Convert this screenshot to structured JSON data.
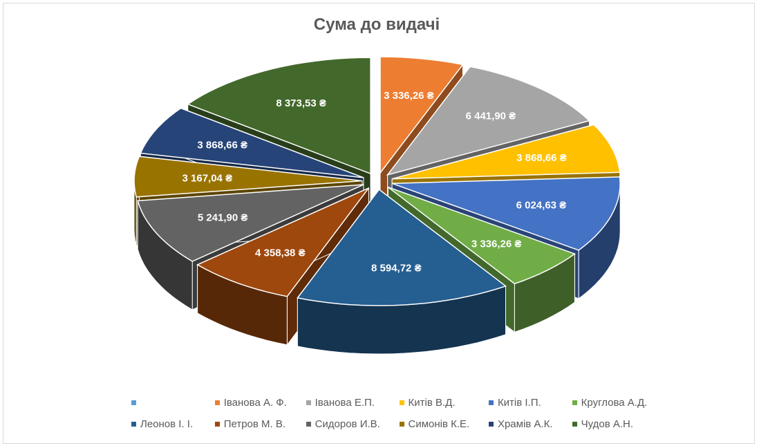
{
  "chart_data": {
    "type": "pie",
    "title": "Сума до видачі",
    "slices": [
      {
        "name": "",
        "value": 0,
        "label": "",
        "color": "#5B9BD5"
      },
      {
        "name": "Іванова А. Ф.",
        "value": 3336.26,
        "label": "3 336,26 ₴",
        "color": "#ED7D31"
      },
      {
        "name": "Іванова Е.П.",
        "value": 6441.9,
        "label": "6 441,90 ₴",
        "color": "#A5A5A5"
      },
      {
        "name": "Китів В.Д.",
        "value": 3868.66,
        "label": "3 868,66 ₴",
        "color": "#FFC000"
      },
      {
        "name": "Китів І.П.",
        "value": 6024.63,
        "label": "6 024,63 ₴",
        "color": "#4472C4"
      },
      {
        "name": "Круглова А.Д.",
        "value": 3336.26,
        "label": "3 336,26 ₴",
        "color": "#70AD47"
      },
      {
        "name": "Леонов І. І.",
        "value": 8594.72,
        "label": "8 594,72 ₴",
        "color": "#255E91"
      },
      {
        "name": "Петров М. В.",
        "value": 4358.38,
        "label": "4 358,38 ₴",
        "color": "#9E480E"
      },
      {
        "name": "Сидоров И.В.",
        "value": 5241.9,
        "label": "5 241,90 ₴",
        "color": "#636363"
      },
      {
        "name": "Симонів К.Е.",
        "value": 3167.04,
        "label": "3 167,04 ₴",
        "color": "#997300"
      },
      {
        "name": "Храмів А.К.",
        "value": 3868.66,
        "label": "3 868,66 ₴",
        "color": "#264478"
      },
      {
        "name": "Чудов А.Н.",
        "value": 8373.53,
        "label": "8 373,53 ₴",
        "color": "#43682B"
      }
    ],
    "legend_position": "bottom",
    "style": "3d-exploded"
  }
}
